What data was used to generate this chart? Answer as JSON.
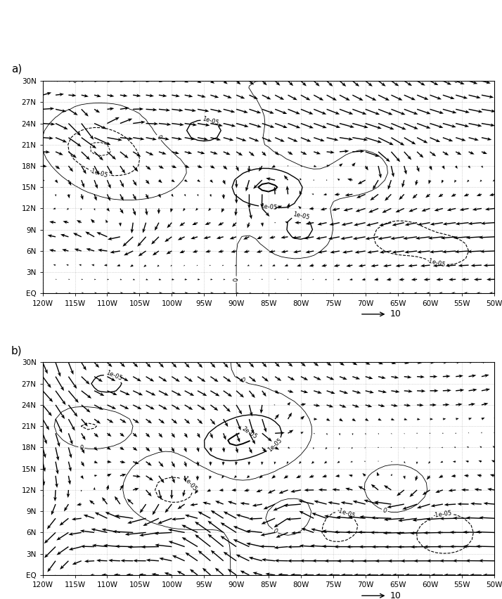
{
  "lon_min": -120,
  "lon_max": -50,
  "lat_min": 0,
  "lat_max": 30,
  "xtick_lons": [
    -120,
    -115,
    -110,
    -105,
    -100,
    -95,
    -90,
    -85,
    -80,
    -75,
    -70,
    -65,
    -60,
    -55,
    -50
  ],
  "xtick_labels": [
    "120W",
    "115W",
    "110W",
    "105W",
    "100W",
    "95W",
    "90W",
    "85W",
    "80W",
    "75W",
    "70W",
    "65W",
    "60W",
    "55W",
    "50W"
  ],
  "ytick_lats": [
    0,
    3,
    6,
    9,
    12,
    15,
    18,
    21,
    24,
    27,
    30
  ],
  "ytick_labels": [
    "EQ",
    "3N",
    "6N",
    "9N",
    "12N",
    "15N",
    "18N",
    "21N",
    "24N",
    "27N",
    "30N"
  ],
  "panel_a_label": "a)",
  "panel_b_label": "b)",
  "ref_arrow_speed": 10,
  "ref_arrow_label": "10",
  "background_color": "#ffffff",
  "quiver_color": "black",
  "figsize": [
    7.14,
    8.52
  ],
  "dpi": 100
}
